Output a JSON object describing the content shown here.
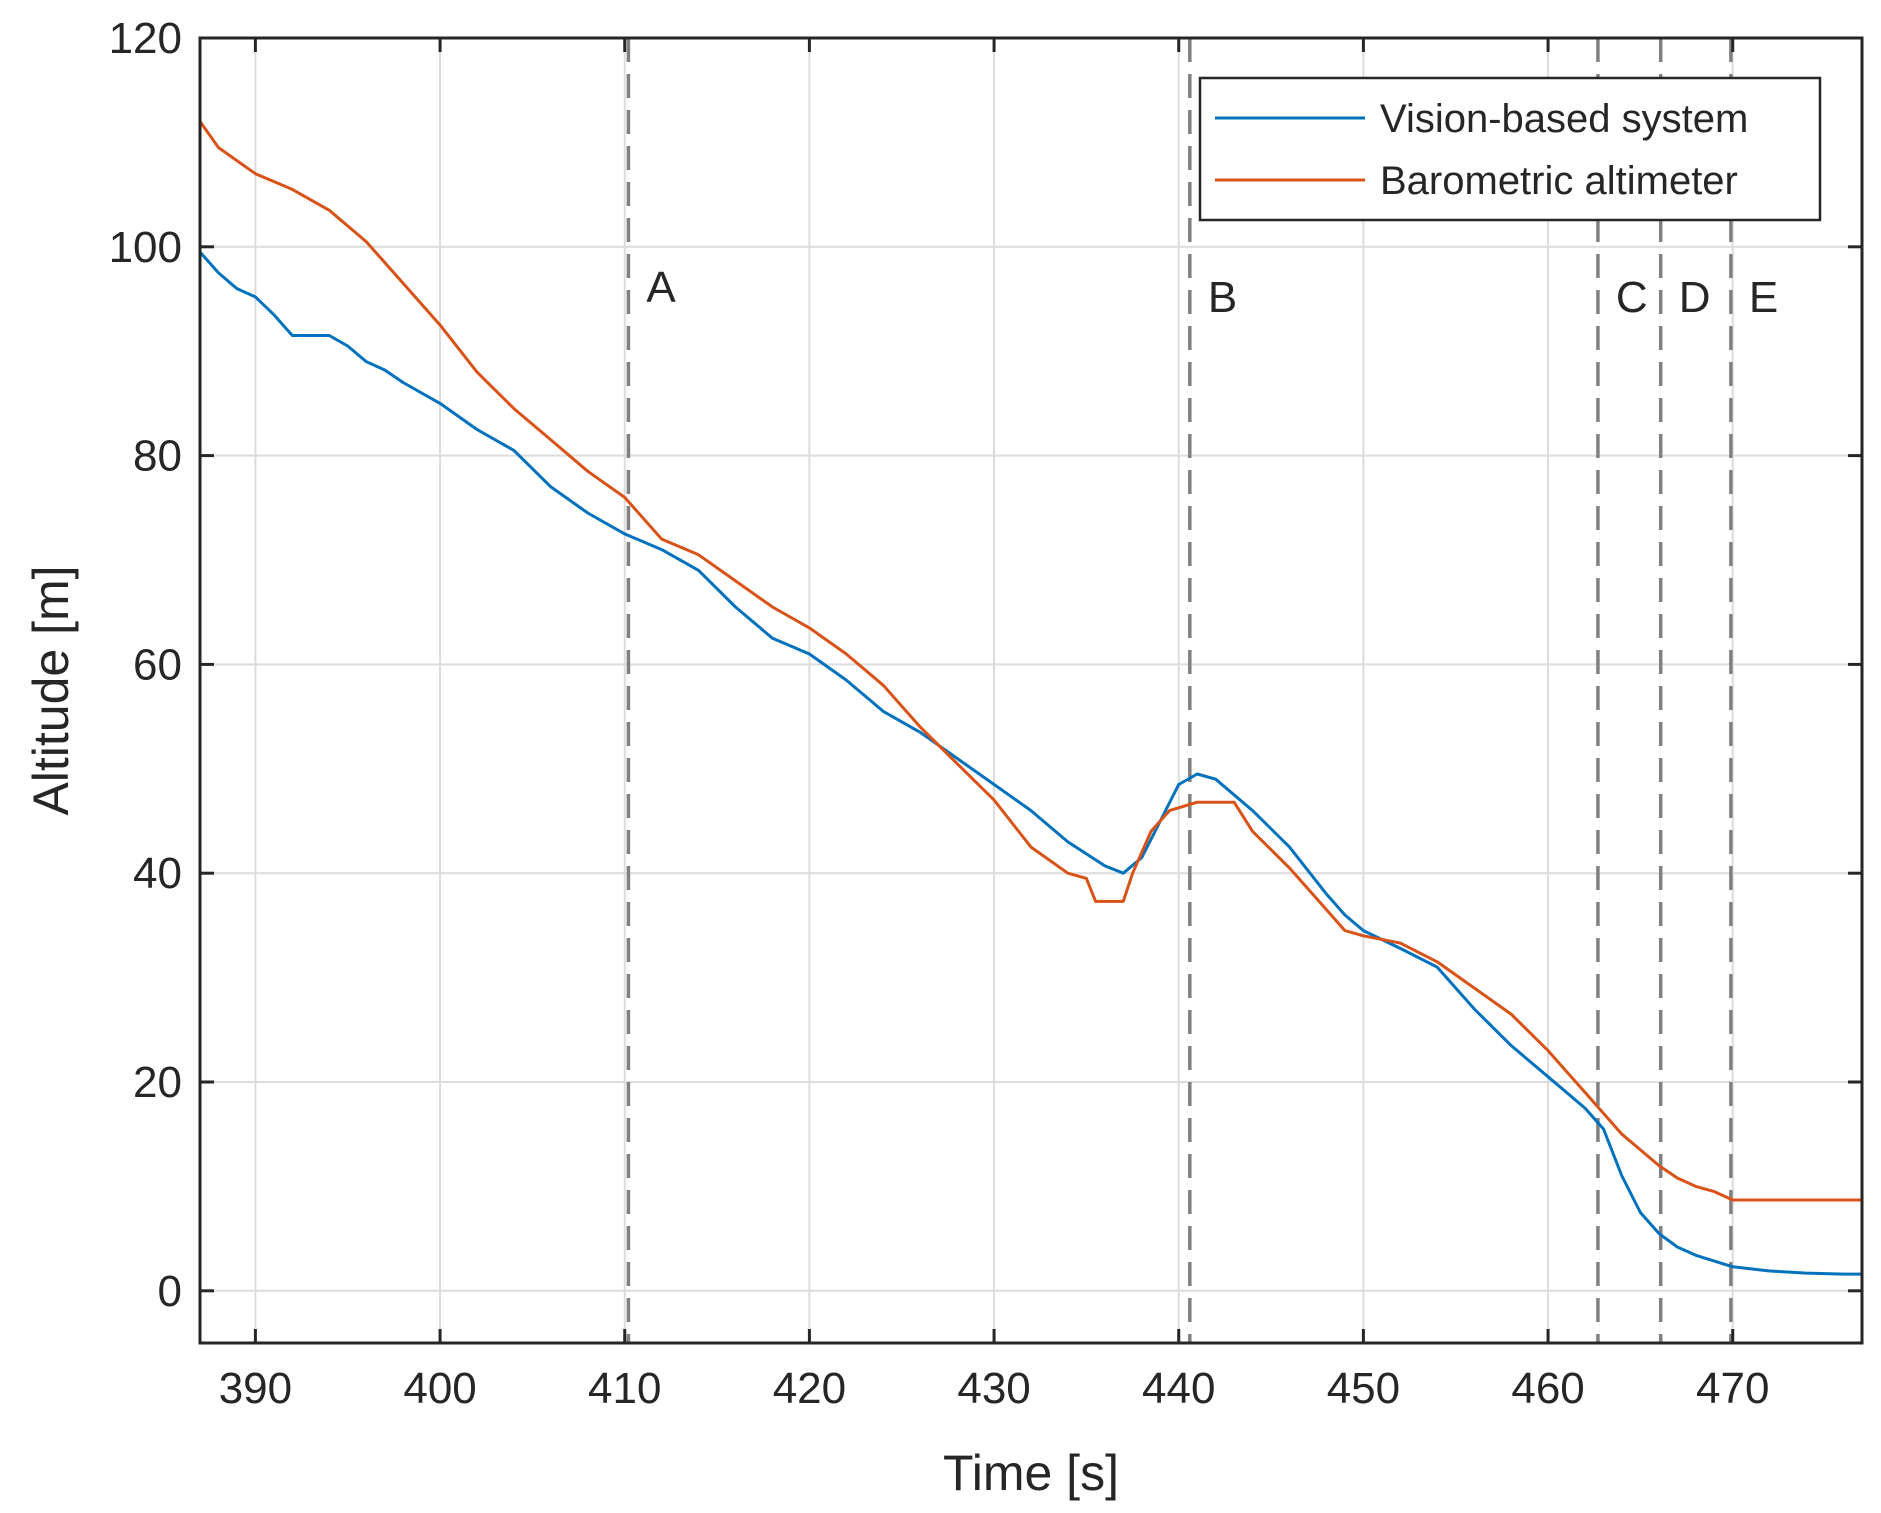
{
  "chart_data": {
    "type": "line",
    "title": "",
    "xlabel": "Time [s]",
    "ylabel": "Altitude [m]",
    "xlim": [
      387,
      477
    ],
    "ylim": [
      -5,
      120
    ],
    "xticks": [
      390,
      400,
      410,
      420,
      430,
      440,
      450,
      460,
      470
    ],
    "yticks": [
      0,
      20,
      40,
      60,
      80,
      100,
      120
    ],
    "grid": true,
    "legend_position": "top-right",
    "colors": {
      "axes": "#262626",
      "grid": "#dcdcdc",
      "event": "#808080"
    },
    "events": [
      {
        "label": "A",
        "x": 410.2
      },
      {
        "label": "B",
        "x": 440.6
      },
      {
        "label": "C",
        "x": 462.7
      },
      {
        "label": "D",
        "x": 466.1
      },
      {
        "label": "E",
        "x": 469.9
      }
    ],
    "series": [
      {
        "name": "Vision-based system",
        "color": "#0072BD",
        "x": [
          387,
          388,
          389,
          390,
          391,
          392,
          393,
          394,
          395,
          396,
          397,
          398,
          399,
          400,
          402,
          404,
          406,
          408,
          410,
          412,
          414,
          416,
          418,
          420,
          422,
          424,
          426,
          428,
          430,
          432,
          434,
          436,
          437,
          438,
          439,
          440,
          441,
          442,
          444,
          446,
          448,
          449,
          450,
          452,
          454,
          456,
          458,
          460,
          462,
          463,
          464,
          465,
          466,
          467,
          468,
          470,
          472,
          474,
          476,
          477
        ],
        "y": [
          99.5,
          97.5,
          96,
          95.2,
          93.5,
          91.5,
          91.5,
          91.5,
          90.5,
          89,
          88.2,
          87,
          86,
          85,
          82.5,
          80.5,
          77,
          74.5,
          72.5,
          71,
          69,
          65.5,
          62.5,
          61,
          58.5,
          55.5,
          53.5,
          51,
          48.5,
          46,
          43,
          40.7,
          40,
          41.5,
          45,
          48.5,
          49.5,
          49,
          46,
          42.5,
          38,
          36,
          34.5,
          32.8,
          31,
          27,
          23.5,
          20.5,
          17.5,
          15.5,
          11,
          7.5,
          5.5,
          4.2,
          3.4,
          2.3,
          1.9,
          1.7,
          1.6,
          1.6
        ]
      },
      {
        "name": "Barometric altimeter",
        "color": "#D95319",
        "x": [
          387,
          388,
          390,
          392,
          394,
          396,
          398,
          400,
          402,
          404,
          406,
          408,
          410,
          412,
          414,
          416,
          418,
          420,
          422,
          424,
          426,
          428,
          430,
          432,
          434,
          435,
          435.5,
          437,
          437.5,
          438.5,
          439.5,
          441,
          442,
          443,
          444,
          446,
          448,
          449,
          450,
          452,
          454,
          456,
          458,
          460,
          462,
          464,
          466,
          467,
          468,
          469,
          470,
          472,
          474,
          476,
          477
        ],
        "y": [
          112,
          109.5,
          107,
          105.5,
          103.5,
          100.5,
          96.5,
          92.5,
          88,
          84.5,
          81.5,
          78.5,
          76,
          72,
          70.5,
          68,
          65.5,
          63.5,
          61,
          58,
          54,
          50.5,
          47,
          42.5,
          40,
          39.5,
          37.3,
          37.3,
          40,
          44,
          46,
          46.8,
          46.8,
          46.8,
          44,
          40.5,
          36.5,
          34.5,
          34,
          33.3,
          31.5,
          29,
          26.5,
          23,
          19,
          15,
          12,
          10.8,
          10,
          9.5,
          8.7,
          8.7,
          8.7,
          8.7,
          8.7
        ]
      }
    ]
  }
}
